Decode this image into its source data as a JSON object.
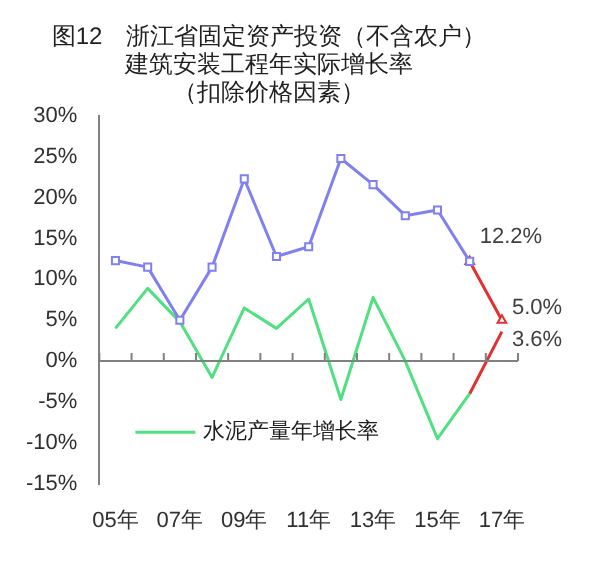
{
  "chart_data": {
    "type": "line",
    "title": "图12　浙江省固定资产投资（不含农户）建筑安装工程年实际增长率",
    "subtitle": "（扣除价格因素）",
    "categories": [
      "05年",
      null,
      "07年",
      null,
      "09年",
      null,
      "11年",
      null,
      "13年",
      null,
      "15年",
      null,
      "17年"
    ],
    "series": [
      {
        "color": "#8080f0",
        "marker": "square",
        "values": [
          12.3,
          11.5,
          5.0,
          11.5,
          22.3,
          12.8,
          14.0,
          24.8,
          21.6,
          17.8,
          18.5,
          12.2,
          null
        ]
      },
      {
        "color": "#e03030",
        "marker": "triangle",
        "values": [
          null,
          null,
          null,
          null,
          null,
          null,
          null,
          null,
          null,
          null,
          null,
          12.2,
          5.0
        ],
        "value_labels": [
          null,
          null,
          null,
          null,
          null,
          null,
          null,
          null,
          null,
          null,
          null,
          "12.2%",
          "5.0%"
        ]
      },
      {
        "name": "水泥产量年增长率",
        "color": "#50e080",
        "values": [
          4.0,
          8.9,
          4.8,
          -2.0,
          6.5,
          4.0,
          7.6,
          -4.7,
          7.8,
          0.0,
          -9.5,
          -4.0,
          null
        ]
      },
      {
        "color": "#e03030",
        "values": [
          null,
          null,
          null,
          null,
          null,
          null,
          null,
          null,
          null,
          null,
          null,
          -4.0,
          3.6
        ],
        "value_labels": [
          null,
          null,
          null,
          null,
          null,
          null,
          null,
          null,
          null,
          null,
          null,
          null,
          "3.6%"
        ]
      }
    ],
    "ylim": [
      -15,
      30
    ],
    "yticks": [
      {
        "value": -15,
        "label": "-15%"
      },
      {
        "value": -10,
        "label": "-10%"
      },
      {
        "value": -5,
        "label": "-5%"
      },
      {
        "value": 0,
        "label": "0%"
      },
      {
        "value": 5,
        "label": "5%"
      },
      {
        "value": 10,
        "label": "10%"
      },
      {
        "value": 15,
        "label": "15%"
      },
      {
        "value": 20,
        "label": "20%"
      },
      {
        "value": 25,
        "label": "25%"
      },
      {
        "value": 30,
        "label": "30%"
      }
    ],
    "legend": "bottom"
  }
}
